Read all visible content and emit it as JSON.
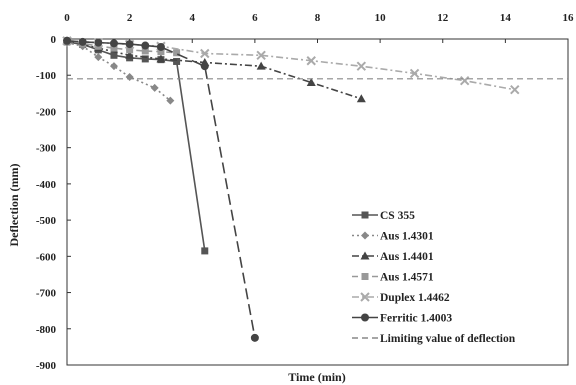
{
  "chart_data": {
    "type": "line",
    "xlabel": "Time (min)",
    "ylabel": "Deflection (mm)",
    "xlim": [
      0,
      16
    ],
    "ylim": [
      -900,
      0
    ],
    "x_ticks": [
      0,
      2,
      4,
      6,
      8,
      10,
      12,
      14,
      16
    ],
    "y_ticks": [
      0,
      -100,
      -200,
      -300,
      -400,
      -500,
      -600,
      -700,
      -800,
      -900
    ],
    "x_tick_labels": [
      "0",
      "2",
      "4",
      "6",
      "8",
      "10",
      "12",
      "14",
      "16"
    ],
    "y_tick_labels": [
      "0",
      "-100",
      "-200",
      "-300",
      "-400",
      "-500",
      "-600",
      "-700",
      "-800",
      "-900"
    ],
    "x_axis_position": "top",
    "grid": false,
    "legend_position": "bottom-right",
    "series": [
      {
        "name": "CS 355",
        "color": "#555555",
        "dash": "solid",
        "marker": "square",
        "points": [
          [
            0,
            -8
          ],
          [
            0.5,
            -15
          ],
          [
            1,
            -30
          ],
          [
            1.5,
            -45
          ],
          [
            2,
            -52
          ],
          [
            2.5,
            -55
          ],
          [
            3,
            -57
          ],
          [
            3.5,
            -62
          ],
          [
            4.4,
            -585
          ]
        ]
      },
      {
        "name": "Aus 1.4301",
        "color": "#888888",
        "dash": "dot",
        "marker": "diamond",
        "points": [
          [
            0,
            -10
          ],
          [
            0.5,
            -20
          ],
          [
            1,
            -50
          ],
          [
            1.5,
            -75
          ],
          [
            2,
            -105
          ],
          [
            2.8,
            -135
          ],
          [
            3.3,
            -170
          ]
        ]
      },
      {
        "name": "Aus 1.4401",
        "color": "#444444",
        "dash": "dash-dot",
        "marker": "triangle",
        "points": [
          [
            0,
            -5
          ],
          [
            1,
            -25
          ],
          [
            2,
            -45
          ],
          [
            3,
            -55
          ],
          [
            4.4,
            -65
          ],
          [
            6.2,
            -75
          ],
          [
            7.8,
            -120
          ],
          [
            9.4,
            -165
          ]
        ]
      },
      {
        "name": "Aus 1.4571",
        "color": "#999999",
        "dash": "dash",
        "marker": "square",
        "points": [
          [
            0,
            -5
          ],
          [
            0.5,
            -12
          ],
          [
            1,
            -20
          ],
          [
            1.5,
            -25
          ],
          [
            2,
            -30
          ],
          [
            2.5,
            -33
          ],
          [
            3,
            -35
          ],
          [
            3.5,
            -38
          ]
        ]
      },
      {
        "name": "Duplex 1.4462",
        "color": "#aaaaaa",
        "dash": "dash-dot",
        "marker": "x",
        "points": [
          [
            0,
            -5
          ],
          [
            1,
            -10
          ],
          [
            2,
            -15
          ],
          [
            3,
            -20
          ],
          [
            4.4,
            -40
          ],
          [
            6.2,
            -45
          ],
          [
            7.8,
            -60
          ],
          [
            9.4,
            -75
          ],
          [
            11.1,
            -95
          ],
          [
            12.7,
            -115
          ],
          [
            14.3,
            -140
          ]
        ]
      },
      {
        "name": "Ferritic 1.4003",
        "color": "#444444",
        "dash": "long-dash",
        "marker": "circle",
        "points": [
          [
            0,
            -5
          ],
          [
            0.5,
            -8
          ],
          [
            1,
            -10
          ],
          [
            1.5,
            -12
          ],
          [
            2,
            -14
          ],
          [
            2.5,
            -18
          ],
          [
            3,
            -22
          ],
          [
            4.4,
            -75
          ],
          [
            6,
            -825
          ]
        ]
      },
      {
        "name": "Limiting value of deflection",
        "color": "#888888",
        "dash": "dash",
        "marker": "none",
        "points": [
          [
            0,
            -110
          ],
          [
            16,
            -110
          ]
        ]
      }
    ]
  }
}
